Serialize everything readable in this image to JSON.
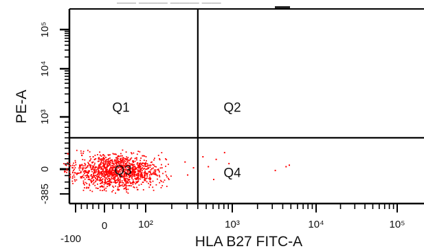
{
  "chart_data": {
    "type": "scatter",
    "title_fragment": "—— ——— ——— ——",
    "xlabel": "HLA B27 FITC-A",
    "ylabel": "PE-A",
    "x_scale": "biexponential",
    "y_scale": "biexponential",
    "x_tick_labels": [
      "-100",
      "0",
      "10²",
      "10³",
      "10⁴",
      "10⁵"
    ],
    "x_tick_values": [
      -100,
      0,
      100,
      1000,
      10000,
      100000
    ],
    "y_tick_labels": [
      "-385",
      "0",
      "10³",
      "10⁴",
      "10⁵"
    ],
    "y_tick_values": [
      -385,
      0,
      1000,
      10000,
      100000
    ],
    "xlim": [
      -200,
      160000
    ],
    "ylim": [
      -600,
      160000
    ],
    "grid": false,
    "gates": {
      "x_threshold": 400,
      "y_threshold": 600
    },
    "quadrants": [
      {
        "label": "Q1",
        "x": 40,
        "y": 1500
      },
      {
        "label": "Q2",
        "x": 1000,
        "y": 1500
      },
      {
        "label": "Q3",
        "x": 45,
        "y": -30
      },
      {
        "label": "Q4",
        "x": 1000,
        "y": -70
      }
    ],
    "series": [
      {
        "color": "#ff0000",
        "main_cluster": {
          "x_range": [
            -110,
            200
          ],
          "y_range": [
            -320,
            280
          ],
          "center": [
            30,
            -30
          ],
          "approx_points": 1300
        },
        "scattered_points": [
          {
            "x": 450,
            "y": 250
          },
          {
            "x": 520,
            "y": 60
          },
          {
            "x": 640,
            "y": 200
          },
          {
            "x": 300,
            "y": -80
          },
          {
            "x": 800,
            "y": 330
          },
          {
            "x": 900,
            "y": 120
          },
          {
            "x": 3200,
            "y": -10
          },
          {
            "x": 4300,
            "y": 60
          },
          {
            "x": 4700,
            "y": 90
          },
          {
            "x": 350,
            "y": 40
          },
          {
            "x": 280,
            "y": 150
          },
          {
            "x": 600,
            "y": -150
          }
        ]
      }
    ]
  }
}
